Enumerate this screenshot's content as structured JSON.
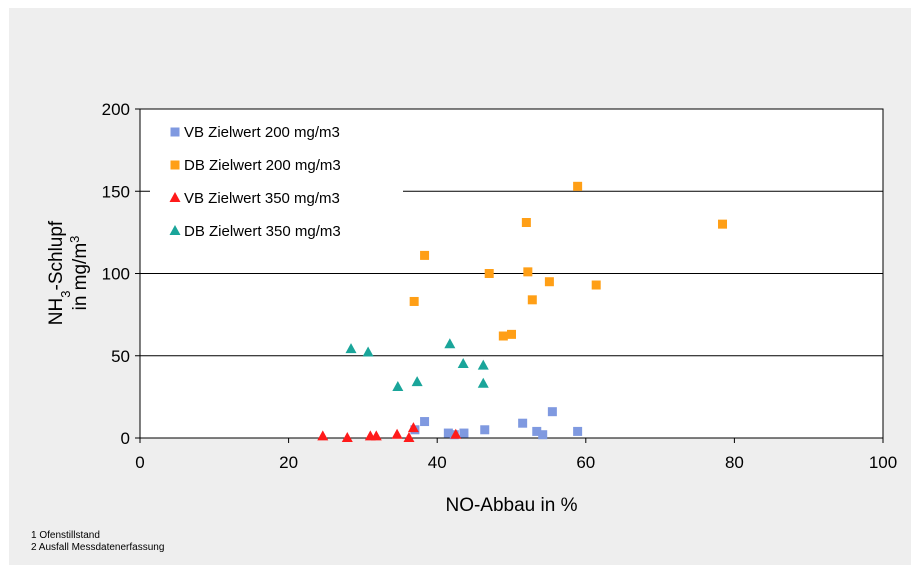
{
  "chart_data": {
    "type": "scatter",
    "xlabel": "NO-Abbau in %",
    "ylabel_line1_prefix": "NH",
    "ylabel_line1_sub": "3",
    "ylabel_line1_suffix": "-Schlupf",
    "ylabel_line2_prefix": "in mg/m",
    "ylabel_line2_sup": "3",
    "xlim": [
      0,
      100
    ],
    "ylim": [
      0,
      200
    ],
    "xticks": [
      0,
      20,
      40,
      60,
      80,
      100
    ],
    "yticks": [
      0,
      50,
      100,
      150,
      200
    ],
    "grid": "horizontal",
    "legend_position": "top-left",
    "series": [
      {
        "name": "VB Zielwert 200 mg/m3",
        "marker": "square",
        "color": "#7f99e0",
        "points": [
          [
            37.0,
            5
          ],
          [
            38.3,
            10
          ],
          [
            41.5,
            3
          ],
          [
            42.3,
            2
          ],
          [
            43.6,
            3
          ],
          [
            46.4,
            5
          ],
          [
            51.5,
            9
          ],
          [
            53.4,
            4
          ],
          [
            54.2,
            2
          ],
          [
            55.5,
            16
          ],
          [
            58.9,
            4
          ]
        ]
      },
      {
        "name": "DB Zielwert 200 mg/m3",
        "marker": "square",
        "color": "#ff9f16",
        "points": [
          [
            36.9,
            83
          ],
          [
            38.3,
            111
          ],
          [
            47.0,
            100
          ],
          [
            48.9,
            62
          ],
          [
            50.0,
            63
          ],
          [
            52.0,
            131
          ],
          [
            52.2,
            101
          ],
          [
            52.8,
            84
          ],
          [
            55.1,
            95
          ],
          [
            58.9,
            153
          ],
          [
            61.4,
            93
          ],
          [
            78.4,
            130
          ]
        ]
      },
      {
        "name": "VB Zielwert 350 mg/m3",
        "marker": "triangle",
        "color": "#ff1a1a",
        "points": [
          [
            24.6,
            1
          ],
          [
            27.9,
            0
          ],
          [
            31.0,
            1
          ],
          [
            31.8,
            1
          ],
          [
            34.6,
            2
          ],
          [
            36.2,
            0
          ],
          [
            36.8,
            6
          ],
          [
            42.5,
            2
          ]
        ]
      },
      {
        "name": "DB Zielwert 350 mg/m3",
        "marker": "triangle",
        "color": "#1aa59a",
        "points": [
          [
            28.4,
            54
          ],
          [
            30.7,
            52
          ],
          [
            34.7,
            31
          ],
          [
            37.3,
            34
          ],
          [
            41.7,
            57
          ],
          [
            43.5,
            45
          ],
          [
            46.2,
            44
          ],
          [
            46.2,
            33
          ]
        ]
      }
    ]
  },
  "footnotes": [
    "1 Ofenstillstand",
    "2 Ausfall Messdatenerfassung"
  ]
}
